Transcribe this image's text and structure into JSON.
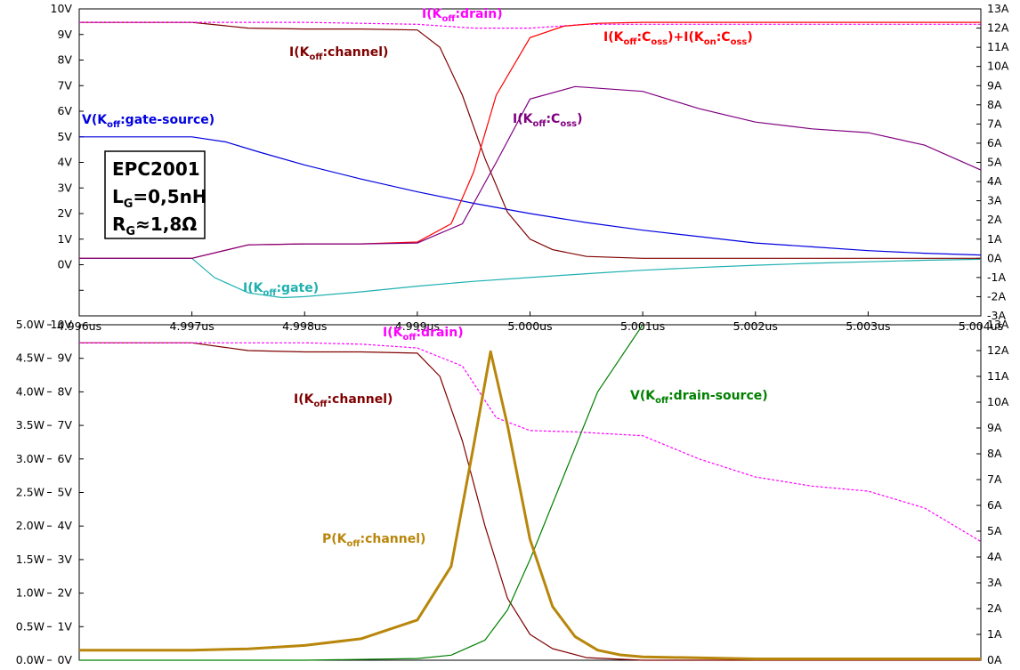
{
  "chart_data": [
    {
      "type": "line",
      "x_ticks": [
        "4.996us",
        "4.997us",
        "4.998us",
        "4.999us",
        "5.000us",
        "5.001us",
        "5.002us",
        "5.003us",
        "5.004us"
      ],
      "x_range": [
        4.996,
        5.004
      ],
      "x_unit": "us",
      "y_left_ticks": [
        "10V",
        "9V",
        "8V",
        "7V",
        "6V",
        "5V",
        "4V",
        "3V",
        "2V",
        "1V",
        "0V"
      ],
      "y_left_range": [
        -2,
        10
      ],
      "y_right_ticks": [
        "13A",
        "12A",
        "11A",
        "10A",
        "9A",
        "8A",
        "7A",
        "6A",
        "5A",
        "4A",
        "3A",
        "2A",
        "1A",
        "0A",
        "-1A",
        "-2A",
        "-3A"
      ],
      "y_right_range": [
        -3,
        13
      ],
      "annotation": {
        "lines": [
          {
            "main": "EPC2001",
            "sub": ""
          },
          {
            "main": "L",
            "sub": "G",
            "rest": "=0,5nH"
          },
          {
            "main": "R",
            "sub": "G",
            "rest": "≈1,8Ω"
          }
        ]
      },
      "series": [
        {
          "name": "V(Koff:gate-source)",
          "label": {
            "pre": "V(K",
            "sub": "off",
            "post": ":gate-source)"
          },
          "color": "#0000e0",
          "axis": "left",
          "dash": false,
          "x": [
            4.996,
            4.997,
            4.9973,
            4.9976,
            4.998,
            4.9985,
            4.999,
            4.9995,
            5.0,
            5.0005,
            5.001,
            5.0015,
            5.002,
            5.0025,
            5.003,
            5.0035,
            5.004
          ],
          "y": [
            5.0,
            5.0,
            4.8,
            4.4,
            3.9,
            3.35,
            2.85,
            2.4,
            2.0,
            1.65,
            1.35,
            1.1,
            0.85,
            0.7,
            0.55,
            0.45,
            0.38
          ]
        },
        {
          "name": "I(Koff:gate)",
          "label": {
            "pre": "I(K",
            "sub": "off",
            "post": ":gate)"
          },
          "color": "#20b0b0",
          "axis": "right",
          "dash": false,
          "x": [
            4.996,
            4.997,
            4.9972,
            4.9975,
            4.9978,
            4.998,
            4.9985,
            4.999,
            4.9995,
            5.0,
            5.0005,
            5.001,
            5.0015,
            5.002,
            5.0025,
            5.003,
            5.0035,
            5.004
          ],
          "y": [
            0.0,
            0.0,
            -1.0,
            -1.8,
            -2.05,
            -2.0,
            -1.75,
            -1.45,
            -1.2,
            -1.0,
            -0.8,
            -0.62,
            -0.48,
            -0.36,
            -0.26,
            -0.18,
            -0.1,
            -0.05
          ]
        },
        {
          "name": "I(Koff:channel)",
          "label": {
            "pre": "I(K",
            "sub": "off",
            "post": ":channel)"
          },
          "color": "#800000",
          "axis": "right",
          "dash": false,
          "x": [
            4.996,
            4.997,
            4.9975,
            4.998,
            4.9985,
            4.999,
            4.9992,
            4.9994,
            4.9996,
            4.9998,
            5.0,
            5.0002,
            5.0005,
            5.001,
            5.002,
            5.004
          ],
          "y": [
            12.3,
            12.3,
            12.0,
            11.95,
            11.95,
            11.9,
            11.0,
            8.5,
            5.2,
            2.4,
            1.0,
            0.45,
            0.1,
            0.0,
            0.0,
            0.0
          ]
        },
        {
          "name": "I(Koff:drain)",
          "label": {
            "pre": "I(K",
            "sub": "off",
            "post": ":drain)"
          },
          "color": "#ff00ff",
          "axis": "right",
          "dash": true,
          "x": [
            4.996,
            4.997,
            4.998,
            4.9985,
            4.999,
            4.9995,
            5.0,
            5.0005,
            5.001,
            5.0015,
            5.002,
            5.0025,
            5.003,
            5.0035,
            5.004
          ],
          "y": [
            12.3,
            12.3,
            12.3,
            12.25,
            12.2,
            12.0,
            12.0,
            12.2,
            12.2,
            12.2,
            12.2,
            12.2,
            12.2,
            12.2,
            12.2
          ]
        },
        {
          "name": "I(Koff:Coss)+I(Kon:Coss)",
          "label": {
            "pre": "I(K",
            "sub": "off",
            "post": ":C",
            "sub2": "oss",
            "post2": ")+I(K",
            "sub3": "on",
            "post3": ":C",
            "sub4": "oss",
            "post4": ")"
          },
          "color": "#ff0000",
          "axis": "right",
          "dash": false,
          "x": [
            4.996,
            4.997,
            4.9975,
            4.998,
            4.9985,
            4.999,
            4.9993,
            4.9995,
            4.9997,
            5.0,
            5.0003,
            5.0006,
            5.001,
            5.002,
            5.004
          ],
          "y": [
            0.0,
            0.0,
            0.7,
            0.75,
            0.75,
            0.85,
            1.8,
            4.5,
            8.5,
            11.5,
            12.1,
            12.25,
            12.3,
            12.3,
            12.3
          ]
        },
        {
          "name": "I(Koff:Coss)",
          "label": {
            "pre": "I(K",
            "sub": "off",
            "post": ":C",
            "sub2": "oss",
            "post2": ")"
          },
          "color": "#800080",
          "axis": "right",
          "dash": false,
          "x": [
            4.996,
            4.997,
            4.9975,
            4.998,
            4.9985,
            4.999,
            4.9994,
            4.9997,
            5.0,
            5.0004,
            5.001,
            5.0015,
            5.002,
            5.0025,
            5.003,
            5.0035,
            5.004
          ],
          "y": [
            0.0,
            0.0,
            0.7,
            0.75,
            0.75,
            0.8,
            1.8,
            5.0,
            8.3,
            8.95,
            8.7,
            7.8,
            7.1,
            6.75,
            6.55,
            5.9,
            4.6
          ]
        }
      ],
      "label_colors": {
        "V(Koff:gate-source)": "#0000e0",
        "I(Koff:gate)": "#20b0b0",
        "I(Koff:channel)": "#800000",
        "I(Koff:drain)": "#ff00ff",
        "I(Koff:Coss)+I(Kon:Coss)": "#ff0000",
        "I(Koff:Coss)": "#800080"
      }
    },
    {
      "type": "line",
      "x_range": [
        4.996,
        5.004
      ],
      "y_left_w_ticks": [
        "5.0W",
        "4.5W",
        "4.0W",
        "3.5W",
        "3.0W",
        "2.5W",
        "2.0W",
        "1.5W",
        "1.0W",
        "0.5W",
        "0.0W"
      ],
      "y_left_w_range": [
        0,
        5
      ],
      "y_left_v_ticks": [
        "10V",
        "9V",
        "8V",
        "7V",
        "6V",
        "5V",
        "4V",
        "3V",
        "2V",
        "1V",
        "0V"
      ],
      "y_left_v_range": [
        0,
        10
      ],
      "y_right_ticks": [
        "13A",
        "12A",
        "11A",
        "10A",
        "9A",
        "8A",
        "7A",
        "6A",
        "5A",
        "4A",
        "3A",
        "2A",
        "1A",
        "0A"
      ],
      "y_right_range": [
        0,
        13
      ],
      "series": [
        {
          "name": "I(Koff:channel)",
          "label": {
            "pre": "I(K",
            "sub": "off",
            "post": ":channel)"
          },
          "color": "#800000",
          "axis": "right",
          "dash": false,
          "x": [
            4.996,
            4.997,
            4.9975,
            4.998,
            4.9985,
            4.999,
            4.9992,
            4.9994,
            4.9996,
            4.9998,
            5.0,
            5.0002,
            5.0005,
            5.001,
            5.002,
            5.004
          ],
          "y": [
            12.3,
            12.3,
            12.0,
            11.95,
            11.95,
            11.9,
            11.0,
            8.5,
            5.2,
            2.4,
            1.0,
            0.45,
            0.1,
            0.0,
            0.0,
            0.0
          ]
        },
        {
          "name": "I(Koff:drain)",
          "label": {
            "pre": "I(K",
            "sub": "off",
            "post": ":drain)"
          },
          "color": "#ff00ff",
          "axis": "right",
          "dash": true,
          "x": [
            4.996,
            4.997,
            4.998,
            4.9985,
            4.999,
            4.9994,
            4.9997,
            5.0,
            5.0004,
            5.001,
            5.0015,
            5.002,
            5.0025,
            5.003,
            5.0035,
            5.004
          ],
          "y": [
            12.3,
            12.3,
            12.3,
            12.25,
            12.1,
            11.4,
            9.4,
            8.9,
            8.85,
            8.7,
            7.8,
            7.1,
            6.75,
            6.55,
            5.9,
            4.6
          ]
        },
        {
          "name": "V(Koff:drain-source)",
          "label": {
            "pre": "V(K",
            "sub": "off",
            "post": ":drain-source)"
          },
          "color": "#008000",
          "axis": "v",
          "dash": false,
          "x": [
            4.996,
            4.997,
            4.998,
            4.999,
            4.9993,
            4.9996,
            4.9998,
            5.0,
            5.0003,
            5.0006,
            5.001
          ],
          "y": [
            0.0,
            0.0,
            0.0,
            0.05,
            0.15,
            0.6,
            1.5,
            3.0,
            5.5,
            8.0,
            10.0
          ]
        },
        {
          "name": "P(Koff:channel)",
          "label": {
            "pre": "P(K",
            "sub": "off",
            "post": ":channel)"
          },
          "color": "#b8860b",
          "axis": "w",
          "dash": false,
          "width": 3,
          "x": [
            4.996,
            4.997,
            4.9975,
            4.998,
            4.9985,
            4.999,
            4.9993,
            4.9995,
            4.99965,
            4.9998,
            5.0,
            5.0002,
            5.0004,
            5.0006,
            5.0008,
            5.001,
            5.002,
            5.004
          ],
          "y": [
            0.15,
            0.15,
            0.17,
            0.22,
            0.32,
            0.6,
            1.4,
            3.2,
            4.6,
            3.5,
            1.8,
            0.8,
            0.35,
            0.15,
            0.08,
            0.05,
            0.02,
            0.02
          ]
        }
      ]
    }
  ]
}
